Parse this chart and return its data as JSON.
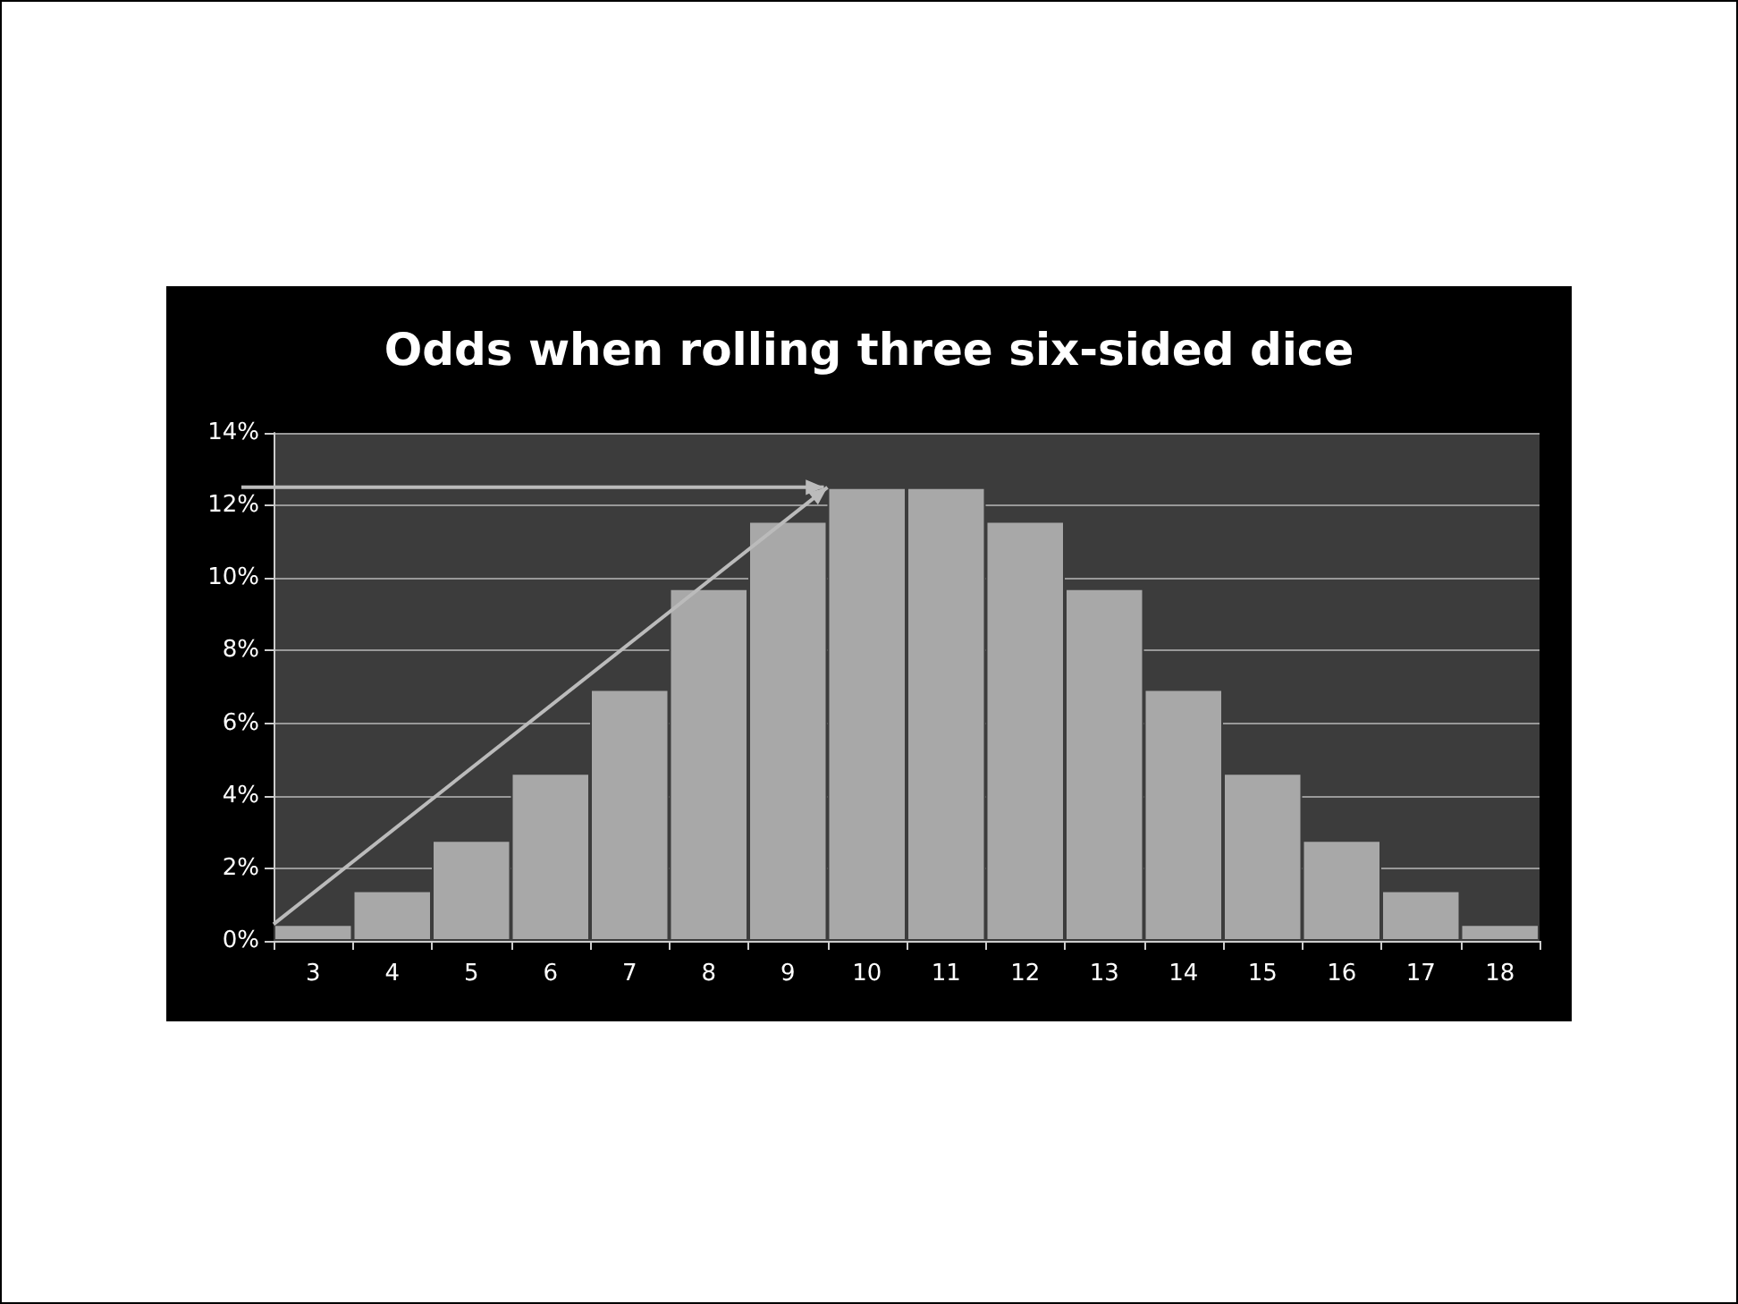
{
  "chart_data": {
    "type": "bar",
    "title": "Odds when rolling three six-sided dice",
    "categories": [
      "3",
      "4",
      "5",
      "6",
      "7",
      "8",
      "9",
      "10",
      "11",
      "12",
      "13",
      "14",
      "15",
      "16",
      "17",
      "18"
    ],
    "values": [
      0.46,
      1.39,
      2.78,
      4.63,
      6.94,
      9.72,
      11.57,
      12.5,
      12.5,
      11.57,
      9.72,
      6.94,
      4.63,
      2.78,
      1.39,
      0.46
    ],
    "color": "#a8a8a8",
    "ylim": [
      0,
      14
    ],
    "yticks": [
      {
        "value": 0,
        "label": "0%"
      },
      {
        "value": 2,
        "label": "2%"
      },
      {
        "value": 4,
        "label": "4%"
      },
      {
        "value": 6,
        "label": "6%"
      },
      {
        "value": 8,
        "label": "8%"
      },
      {
        "value": 10,
        "label": "10%"
      },
      {
        "value": 12,
        "label": "12%"
      },
      {
        "value": 14,
        "label": "14%"
      }
    ],
    "grid": "y"
  }
}
